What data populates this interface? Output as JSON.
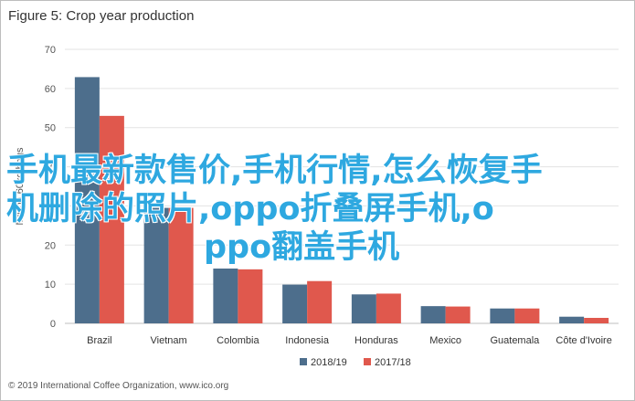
{
  "figure": {
    "title": "Figure 5: Crop year production",
    "footer": "© 2019 International Coffee Organization, www.ico.org"
  },
  "overlay": {
    "line1": "手机最新款售价,手机行情,怎么恢复手",
    "line2": "机删除的照片,oppo折叠屏手机,o",
    "line3": "ppo翻盖手机"
  },
  "chart_data": {
    "type": "bar",
    "title": "Figure 5: Crop year production",
    "xlabel": "",
    "ylabel": "Million 60kg bags",
    "ylim": [
      0,
      70
    ],
    "yticks": [
      0,
      10,
      20,
      30,
      40,
      50,
      60,
      70
    ],
    "grid": true,
    "legend_position": "bottom",
    "categories": [
      "Brazil",
      "Vietnam",
      "Colombia",
      "Indonesia",
      "Honduras",
      "Mexico",
      "Guatemala",
      "Côte d'Ivoire"
    ],
    "series": [
      {
        "name": "2018/19",
        "color": "#4d6e8c",
        "values": [
          62.9,
          29.5,
          14.0,
          9.9,
          7.4,
          4.4,
          3.8,
          1.7
        ]
      },
      {
        "name": "2017/18",
        "color": "#e0584d",
        "values": [
          53.0,
          29.5,
          13.8,
          10.8,
          7.6,
          4.3,
          3.8,
          1.4
        ]
      }
    ]
  }
}
